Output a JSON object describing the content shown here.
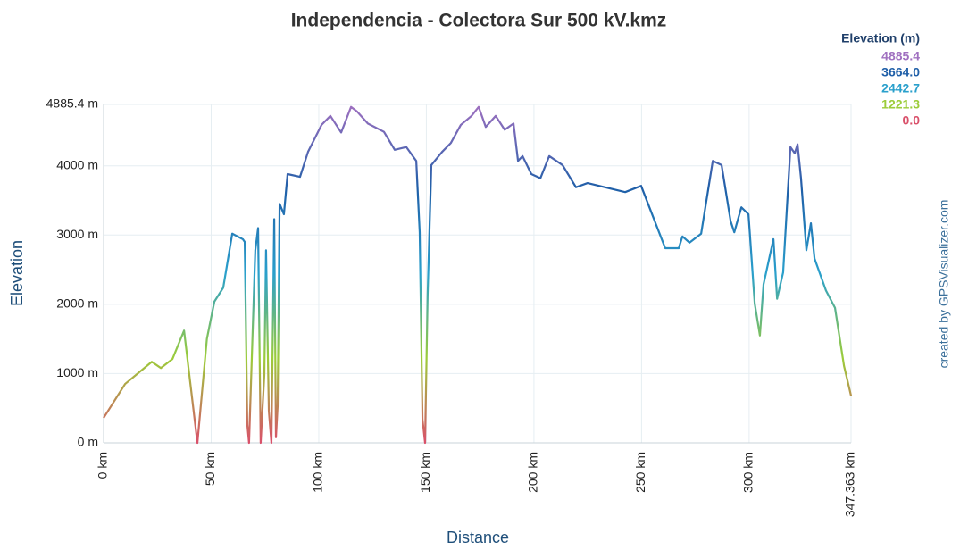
{
  "chart_data": {
    "type": "line",
    "title": "Independencia - Colectora Sur 500 kV.kmz",
    "xlabel": "Distance",
    "ylabel": "Elevation",
    "credit": "created by GPSVisualizer.com",
    "xlim": [
      0,
      347.363
    ],
    "ylim": [
      0,
      4885.4
    ],
    "xticks": [
      {
        "value": 0,
        "label": "0 km"
      },
      {
        "value": 50,
        "label": "50 km"
      },
      {
        "value": 100,
        "label": "100 km"
      },
      {
        "value": 150,
        "label": "150 km"
      },
      {
        "value": 200,
        "label": "200 km"
      },
      {
        "value": 250,
        "label": "250 km"
      },
      {
        "value": 300,
        "label": "300 km"
      },
      {
        "value": 347.363,
        "label": "347.363 km"
      }
    ],
    "yticks": [
      {
        "value": 0,
        "label": "0 m"
      },
      {
        "value": 1000,
        "label": "1000 m"
      },
      {
        "value": 2000,
        "label": "2000 m"
      },
      {
        "value": 3000,
        "label": "3000 m"
      },
      {
        "value": 4000,
        "label": "4000 m"
      },
      {
        "value": 4885.4,
        "label": "4885.4 m"
      }
    ],
    "grid": true,
    "legend": {
      "title": "Elevation (m)",
      "values": [
        4885.4,
        3664,
        2442.7,
        1221.3,
        0
      ],
      "value_labels": [
        "4885.4",
        "3664.0",
        "2442.7",
        "1221.3",
        "0.0"
      ],
      "colors": [
        "#a070c0",
        "#1f5fa8",
        "#2aa0cc",
        "#9ccc3a",
        "#d9506a"
      ]
    },
    "series": [
      {
        "name": "Elevation",
        "x": [
          0,
          10,
          22.4,
          26.6,
          32,
          37.4,
          43.6,
          48,
          51.5,
          55.6,
          59.8,
          64.7,
          65.6,
          66.8,
          67.6,
          70.5,
          71.8,
          73,
          74.7,
          75.5,
          76.8,
          78,
          79.3,
          80.1,
          80.9,
          81.8,
          83.8,
          85.5,
          91.3,
          95,
          101.3,
          105.4,
          110.4,
          115,
          117.9,
          122.8,
          130.3,
          135.3,
          140.7,
          145.3,
          146.9,
          148.2,
          149.4,
          150.6,
          152.3,
          157.3,
          161.4,
          166,
          171,
          174.3,
          177.6,
          182.2,
          186.4,
          190.5,
          192.6,
          194.7,
          198.8,
          203,
          207.1,
          213.3,
          219.5,
          224.9,
          242.4,
          249.8,
          261,
          267.3,
          269,
          272.3,
          277.7,
          283.1,
          287.2,
          291.4,
          293.1,
          296.4,
          299.7,
          302.6,
          305,
          306.7,
          311.3,
          313,
          315.8,
          319.2,
          321.2,
          322.5,
          324.1,
          326.6,
          328.7,
          330.4,
          335.7,
          339.9,
          344.1,
          347.363
        ],
        "values": [
          360,
          850,
          1170,
          1080,
          1210,
          1620,
          0,
          1500,
          2040,
          2240,
          3020,
          2940,
          2900,
          260,
          0,
          2780,
          3100,
          0,
          980,
          2780,
          460,
          0,
          3230,
          80,
          530,
          3450,
          3300,
          3880,
          3840,
          4200,
          4590,
          4720,
          4480,
          4850,
          4780,
          4610,
          4490,
          4230,
          4270,
          4070,
          3040,
          340,
          0,
          2140,
          4010,
          4200,
          4330,
          4590,
          4720,
          4850,
          4560,
          4720,
          4520,
          4610,
          4070,
          4140,
          3880,
          3820,
          4140,
          4010,
          3690,
          3750,
          3620,
          3710,
          2810,
          2810,
          2980,
          2890,
          3020,
          4070,
          4010,
          3200,
          3040,
          3400,
          3300,
          2010,
          1550,
          2290,
          2940,
          2080,
          2460,
          4270,
          4180,
          4310,
          3820,
          2780,
          3170,
          2660,
          2200,
          1950,
          1110,
          680
        ]
      }
    ]
  }
}
